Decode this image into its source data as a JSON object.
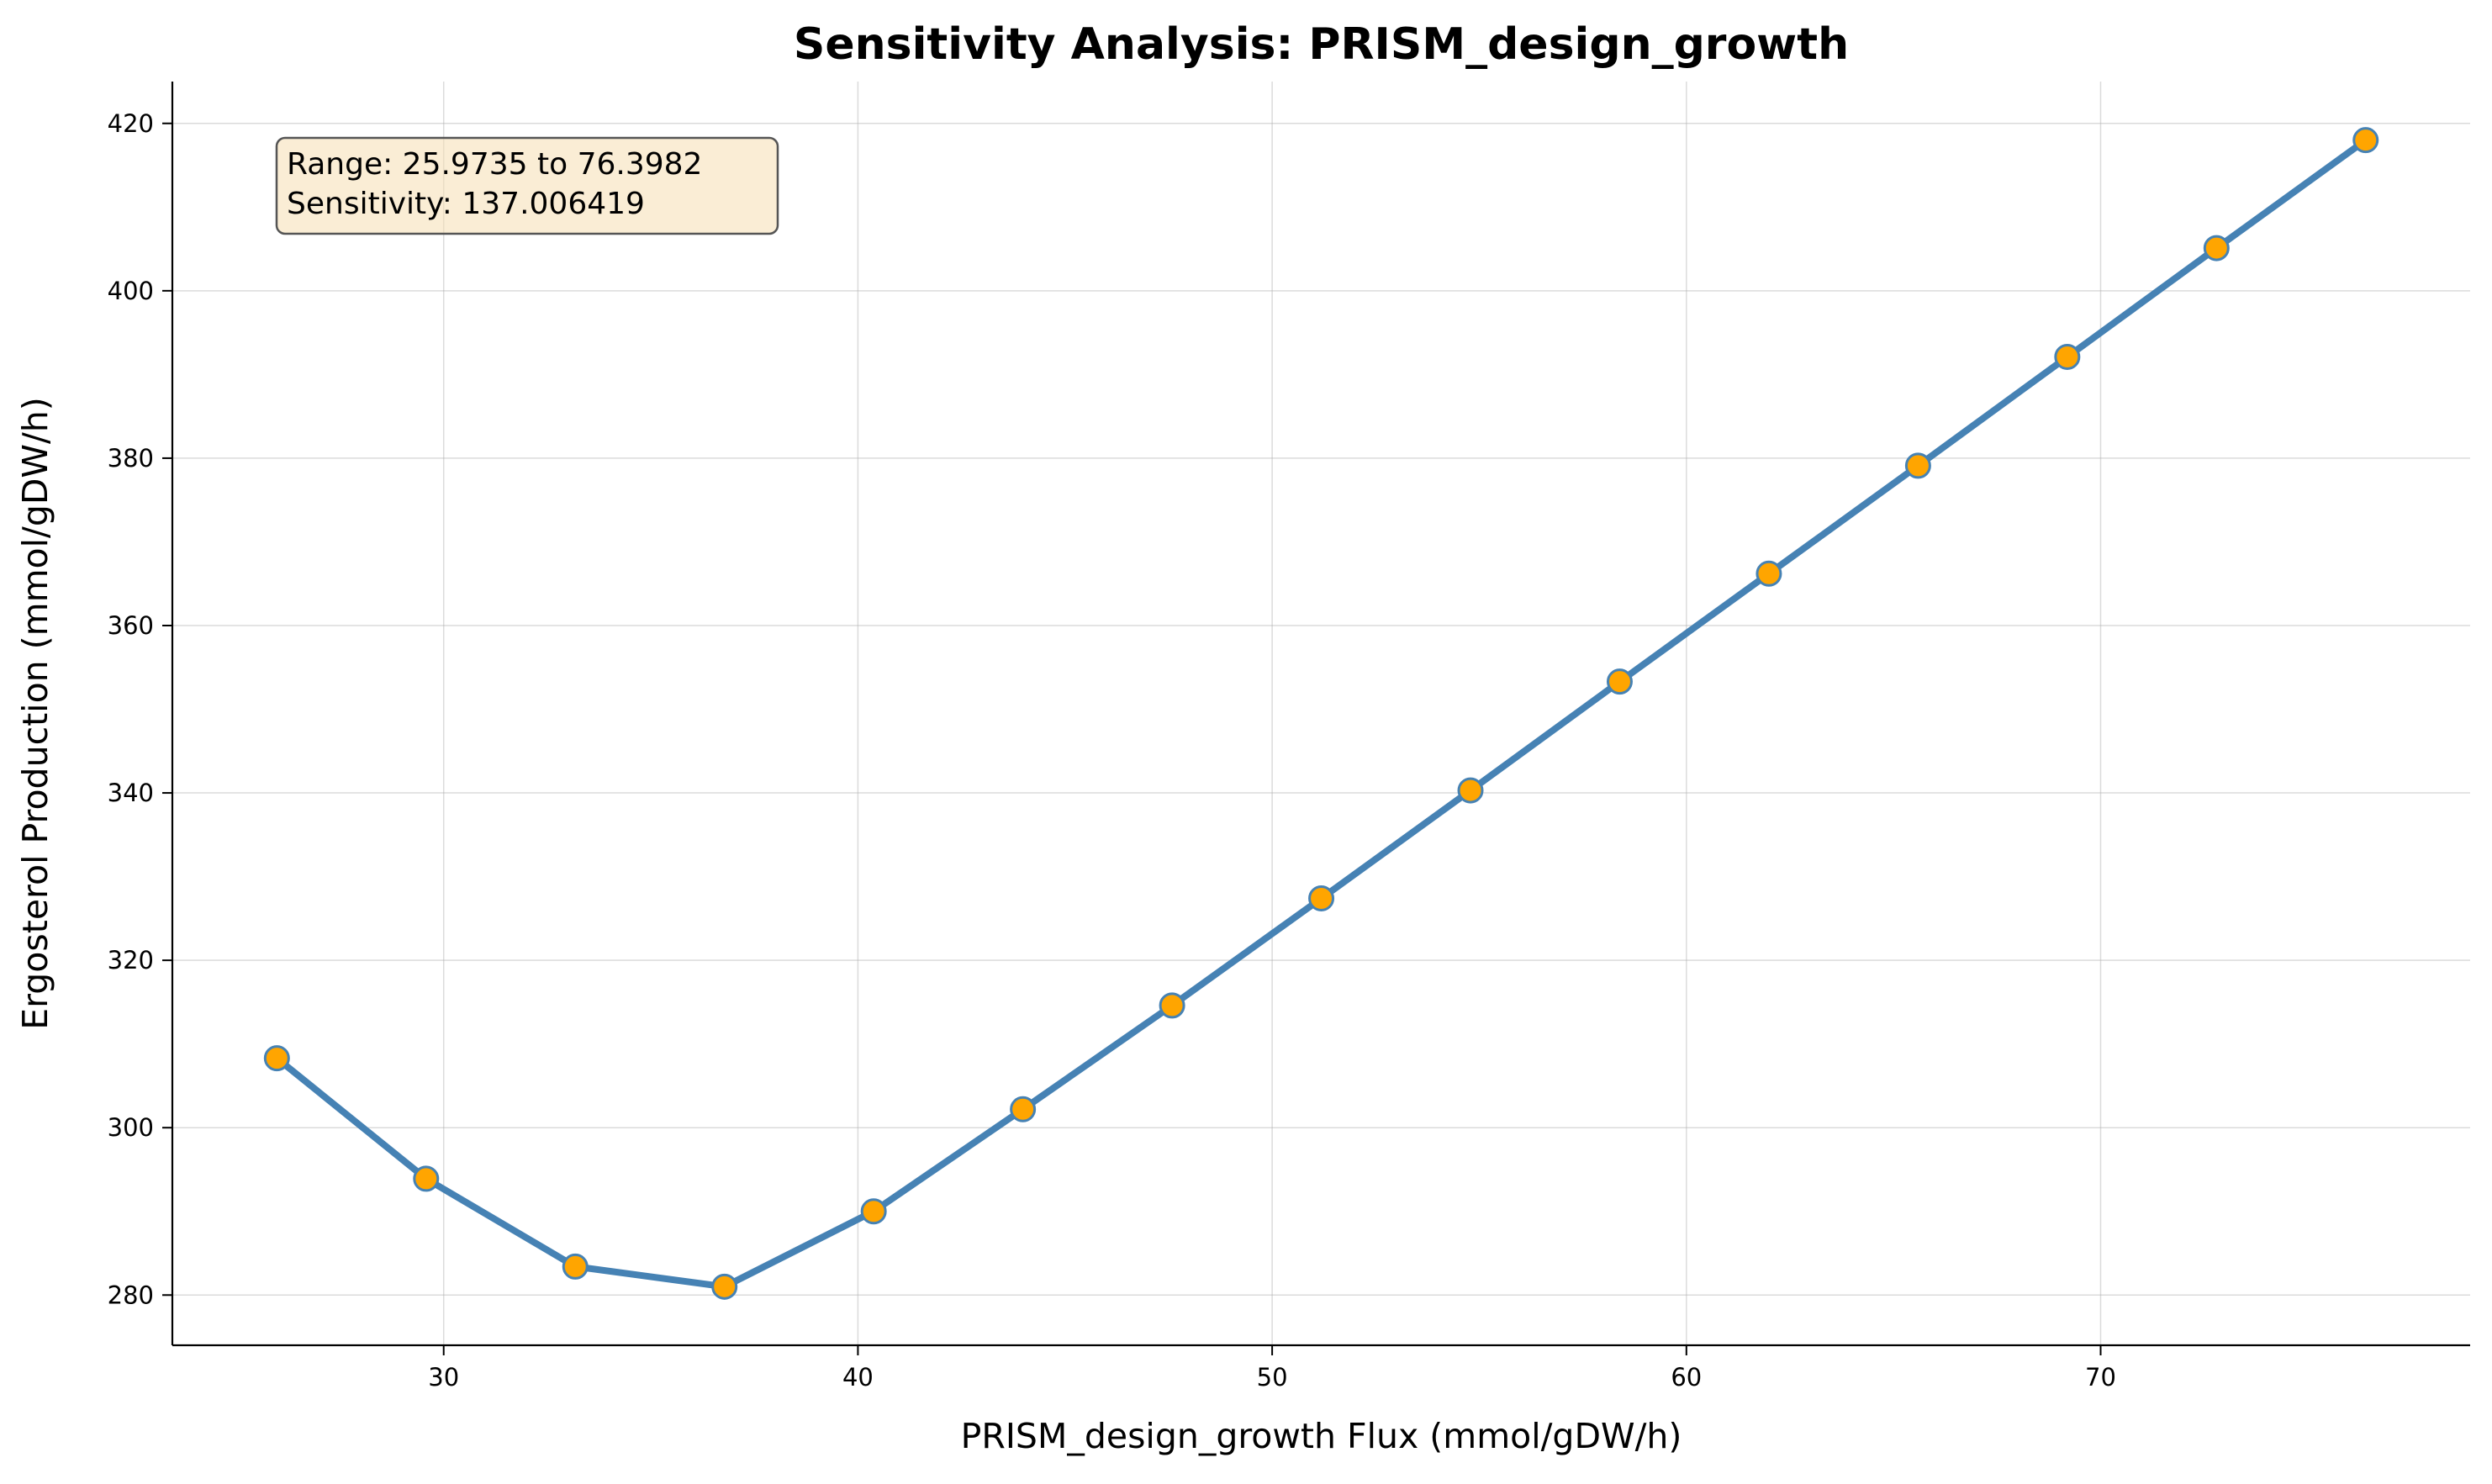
{
  "chart_data": {
    "type": "line",
    "title": "Sensitivity Analysis: PRISM_design_growth",
    "xlabel": "PRISM_design_growth Flux (mmol/gDW/h)",
    "ylabel": "Ergosterol Production (mmol/gDW/h)",
    "xlim": [
      23.45,
      78.92
    ],
    "ylim": [
      274.0,
      425.0
    ],
    "xticks": [
      30,
      40,
      50,
      60,
      70
    ],
    "yticks": [
      280,
      300,
      320,
      340,
      360,
      380,
      400,
      420
    ],
    "grid": true,
    "line_color": "#4682b4",
    "marker_face_color": "#ffa500",
    "annotation": {
      "lines": [
        "Range: 25.9735 to 76.3982",
        "Sensitivity: 137.006419"
      ],
      "box_color": "#f5deb3",
      "placement": "top-left"
    },
    "series": [
      {
        "x": [
          25.9735,
          29.5753,
          33.1771,
          36.7789,
          40.3807,
          43.9825,
          47.5843,
          51.1861,
          54.7879,
          58.3897,
          61.9915,
          65.5933,
          69.195,
          72.7968,
          76.3982
        ],
        "y": [
          308.3,
          293.9,
          283.4,
          281.0,
          290.0,
          302.2,
          314.6,
          327.4,
          340.3,
          353.3,
          366.2,
          379.1,
          392.1,
          405.1,
          418.0
        ]
      }
    ]
  }
}
